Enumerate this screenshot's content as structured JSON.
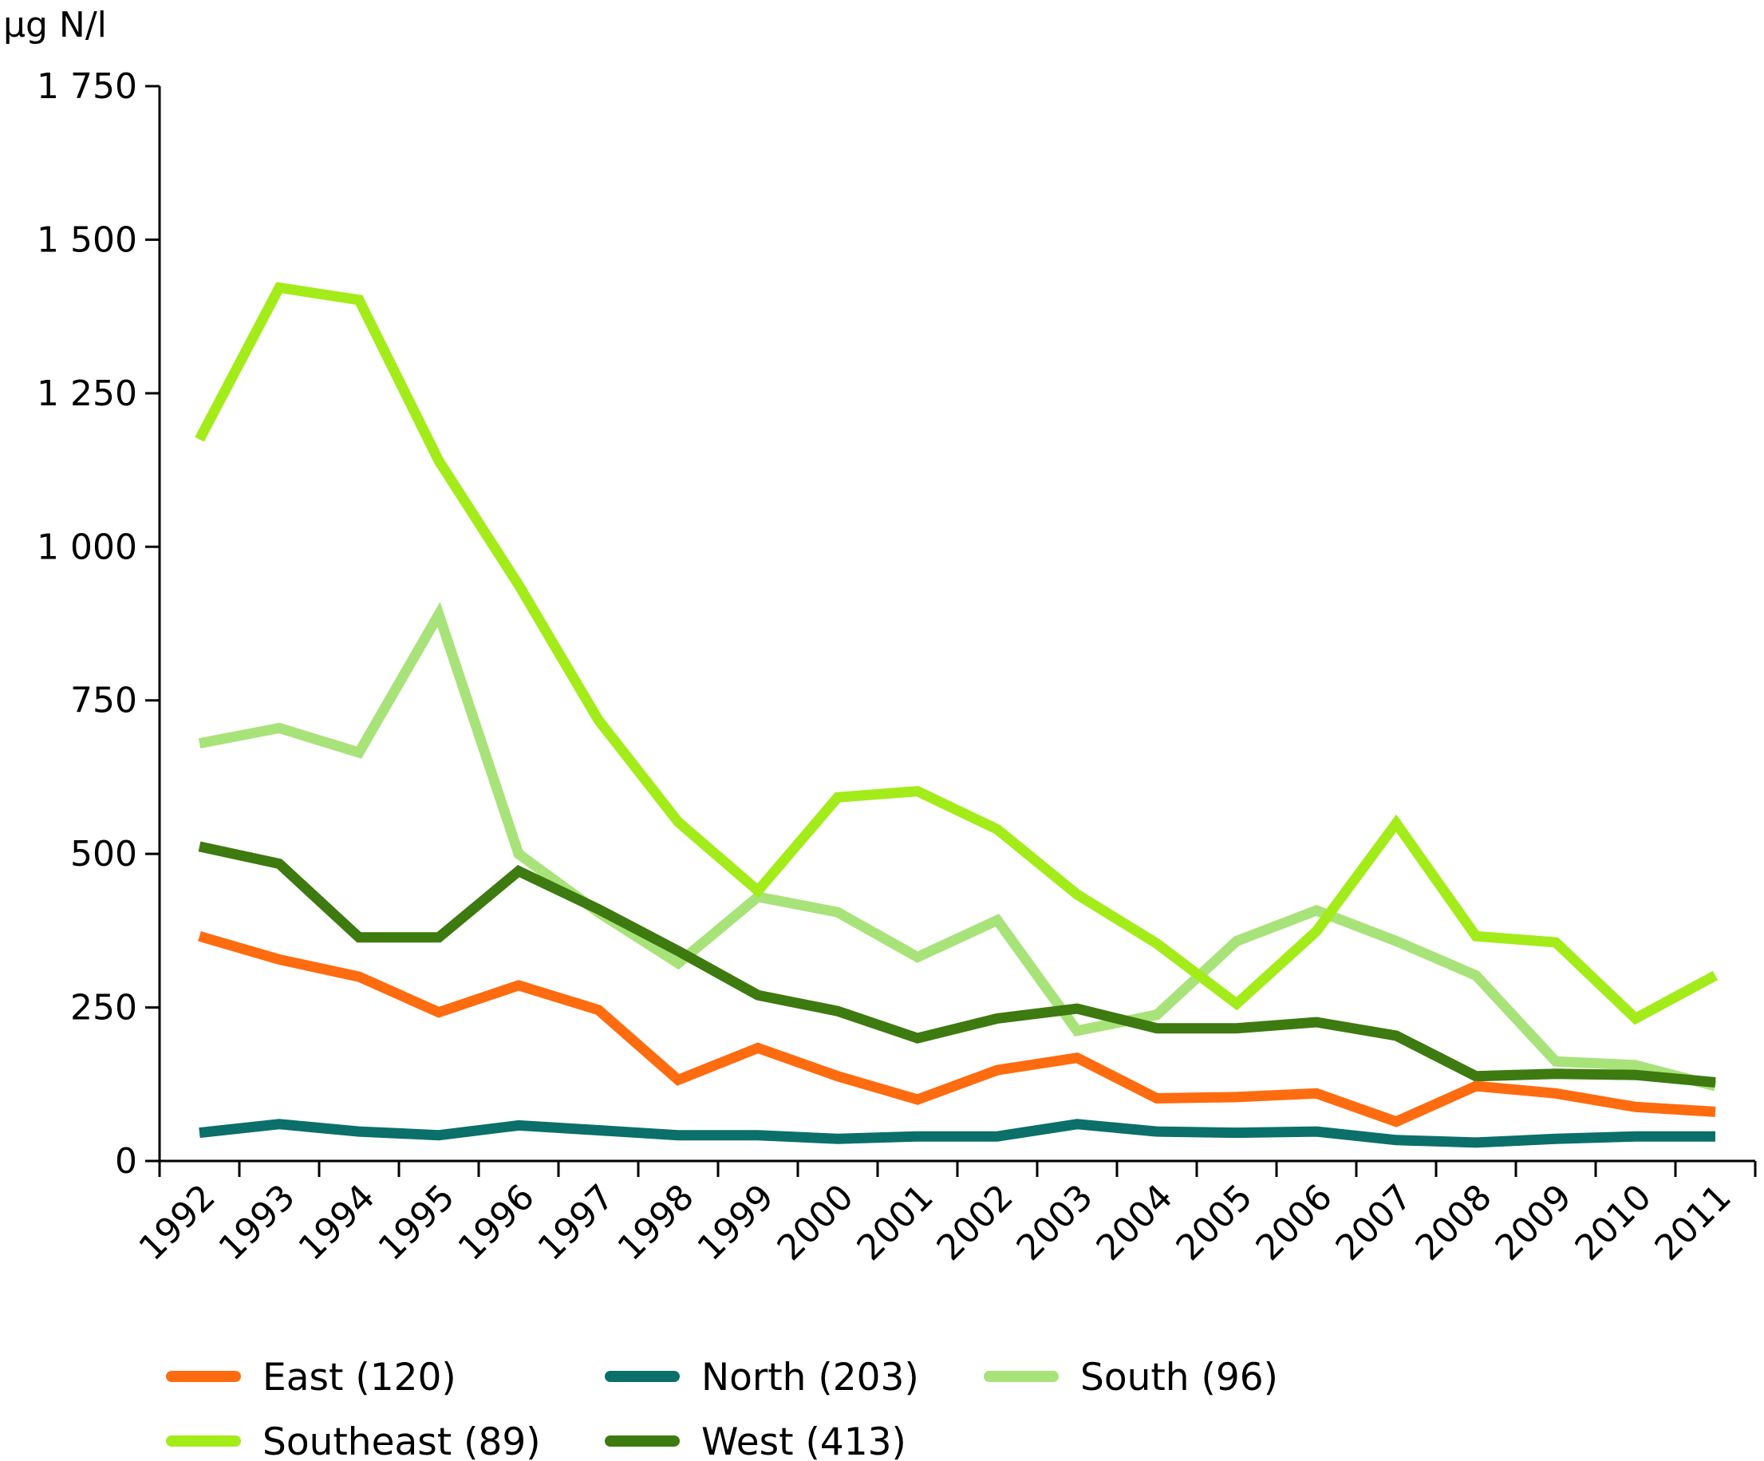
{
  "chart_data": {
    "type": "line",
    "title": "",
    "ylabel": "µg N/l",
    "xlabel": "",
    "ylim": [
      0,
      1750
    ],
    "yticks": [
      0,
      250,
      500,
      750,
      1000,
      1250,
      1500,
      1750
    ],
    "ytick_labels": [
      "0",
      "250",
      "500",
      "750",
      "1 000",
      "1 250",
      "1 500",
      "1 750"
    ],
    "categories": [
      "1992",
      "1993",
      "1994",
      "1995",
      "1996",
      "1997",
      "1998",
      "1999",
      "2000",
      "2001",
      "2002",
      "2003",
      "2004",
      "2005",
      "2006",
      "2007",
      "2008",
      "2009",
      "2010",
      "2011"
    ],
    "grid": false,
    "legend_position": "bottom",
    "series": [
      {
        "name": "East (120)",
        "color": "#ff6b0f",
        "values": [
          366,
          328,
          300,
          242,
          286,
          246,
          132,
          184,
          138,
          100,
          148,
          168,
          102,
          104,
          110,
          64,
          122,
          110,
          88,
          80
        ]
      },
      {
        "name": "North (203)",
        "color": "#0b6f6a",
        "values": [
          46,
          60,
          48,
          42,
          58,
          50,
          42,
          42,
          36,
          40,
          40,
          60,
          48,
          46,
          48,
          34,
          30,
          36,
          40,
          40
        ]
      },
      {
        "name": "South (96)",
        "color": "#a8e37a",
        "values": [
          680,
          705,
          665,
          890,
          500,
          405,
          322,
          430,
          405,
          332,
          392,
          212,
          238,
          358,
          408,
          358,
          302,
          162,
          156,
          122
        ]
      },
      {
        "name": "Southeast (89)",
        "color": "#a3ec1a",
        "values": [
          1175,
          1422,
          1402,
          1140,
          938,
          718,
          552,
          440,
          592,
          602,
          540,
          434,
          354,
          256,
          374,
          550,
          366,
          356,
          232,
          302
        ]
      },
      {
        "name": "West (413)",
        "color": "#3d7a0f",
        "values": [
          512,
          484,
          364,
          364,
          472,
          410,
          342,
          270,
          244,
          200,
          232,
          248,
          216,
          216,
          226,
          204,
          138,
          142,
          140,
          128
        ]
      }
    ]
  }
}
